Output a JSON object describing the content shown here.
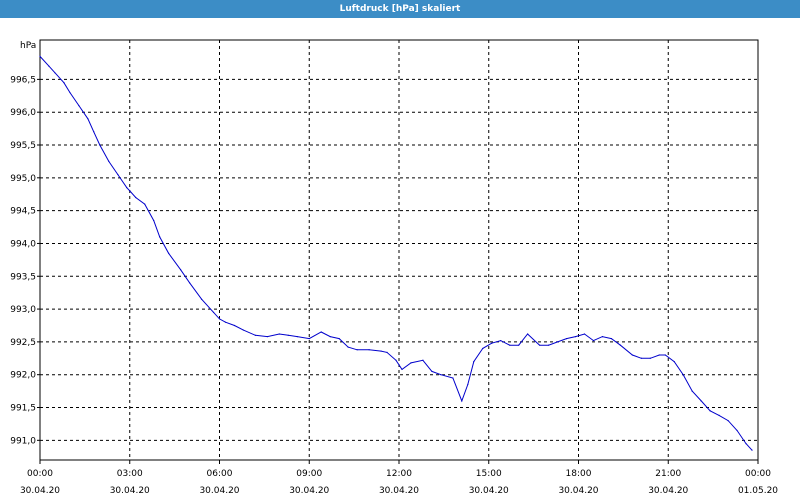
{
  "window": {
    "title": "Luftdruck [hPa] skaliert"
  },
  "colors": {
    "title_bar": "#3c8dc6",
    "series": "#0000cc",
    "grid": "#000000",
    "background": "#ffffff"
  },
  "chart_data": {
    "type": "line",
    "title": "Luftdruck [hPa] skaliert",
    "ylabel": "hPa",
    "xlabel": "",
    "ylim": [
      990.7,
      997.1
    ],
    "xlim_hours": [
      0,
      24
    ],
    "grid": true,
    "y_ticks": [
      {
        "value": 991.0,
        "label": "991,0"
      },
      {
        "value": 991.5,
        "label": "991,5"
      },
      {
        "value": 992.0,
        "label": "992,0"
      },
      {
        "value": 992.5,
        "label": "992,5"
      },
      {
        "value": 993.0,
        "label": "993,0"
      },
      {
        "value": 993.5,
        "label": "993,5"
      },
      {
        "value": 994.0,
        "label": "994,0"
      },
      {
        "value": 994.5,
        "label": "994,5"
      },
      {
        "value": 995.0,
        "label": "995,0"
      },
      {
        "value": 995.5,
        "label": "995,5"
      },
      {
        "value": 996.0,
        "label": "996,0"
      },
      {
        "value": 996.5,
        "label": "996,5"
      }
    ],
    "x_ticks": [
      {
        "hour": 0,
        "time": "00:00",
        "date": "30.04.20"
      },
      {
        "hour": 3,
        "time": "03:00",
        "date": "30.04.20"
      },
      {
        "hour": 6,
        "time": "06:00",
        "date": "30.04.20"
      },
      {
        "hour": 9,
        "time": "09:00",
        "date": "30.04.20"
      },
      {
        "hour": 12,
        "time": "12:00",
        "date": "30.04.20"
      },
      {
        "hour": 15,
        "time": "15:00",
        "date": "30.04.20"
      },
      {
        "hour": 18,
        "time": "18:00",
        "date": "30.04.20"
      },
      {
        "hour": 21,
        "time": "21:00",
        "date": "30.04.20"
      },
      {
        "hour": 24,
        "time": "00:00",
        "date": "01.05.20"
      }
    ],
    "series": [
      {
        "x_hours": [
          0.0,
          0.3,
          0.5,
          0.8,
          1.0,
          1.3,
          1.6,
          1.8,
          2.0,
          2.3,
          2.6,
          2.9,
          3.0,
          3.2,
          3.5,
          3.8,
          4.0,
          4.3,
          4.7,
          5.0,
          5.4,
          5.8,
          6.0,
          6.2,
          6.5,
          6.8,
          7.2,
          7.6,
          8.0,
          8.3,
          8.6,
          9.0,
          9.4,
          9.7,
          10.0,
          10.3,
          10.6,
          11.0,
          11.4,
          11.6,
          11.9,
          12.1,
          12.4,
          12.8,
          13.1,
          13.4,
          13.8,
          14.1,
          14.3,
          14.5,
          14.8,
          15.1,
          15.4,
          15.7,
          16.0,
          16.3,
          16.7,
          17.0,
          17.3,
          17.6,
          17.9,
          18.2,
          18.5,
          18.8,
          19.1,
          19.4,
          19.8,
          20.1,
          20.4,
          20.7,
          20.9,
          21.2,
          21.5,
          21.8,
          22.1,
          22.4,
          22.7,
          23.0,
          23.3,
          23.6,
          23.8
        ],
        "values": [
          996.85,
          996.7,
          996.6,
          996.45,
          996.3,
          996.1,
          995.9,
          995.7,
          995.5,
          995.25,
          995.05,
          994.85,
          994.8,
          994.7,
          994.6,
          994.35,
          994.1,
          993.85,
          993.6,
          993.4,
          993.15,
          992.95,
          992.85,
          992.8,
          992.75,
          992.68,
          992.6,
          992.58,
          992.62,
          992.6,
          992.58,
          992.55,
          992.65,
          992.58,
          992.55,
          992.42,
          992.38,
          992.38,
          992.36,
          992.34,
          992.22,
          992.08,
          992.18,
          992.22,
          992.05,
          992.0,
          991.95,
          991.6,
          991.85,
          992.2,
          992.4,
          992.48,
          992.52,
          992.45,
          992.45,
          992.62,
          992.45,
          992.45,
          992.5,
          992.55,
          992.58,
          992.62,
          992.52,
          992.58,
          992.55,
          992.45,
          992.3,
          992.25,
          992.25,
          992.3,
          992.3,
          992.2,
          992.0,
          991.75,
          991.6,
          991.45,
          991.38,
          991.3,
          991.15,
          990.95,
          990.85
        ]
      }
    ]
  }
}
